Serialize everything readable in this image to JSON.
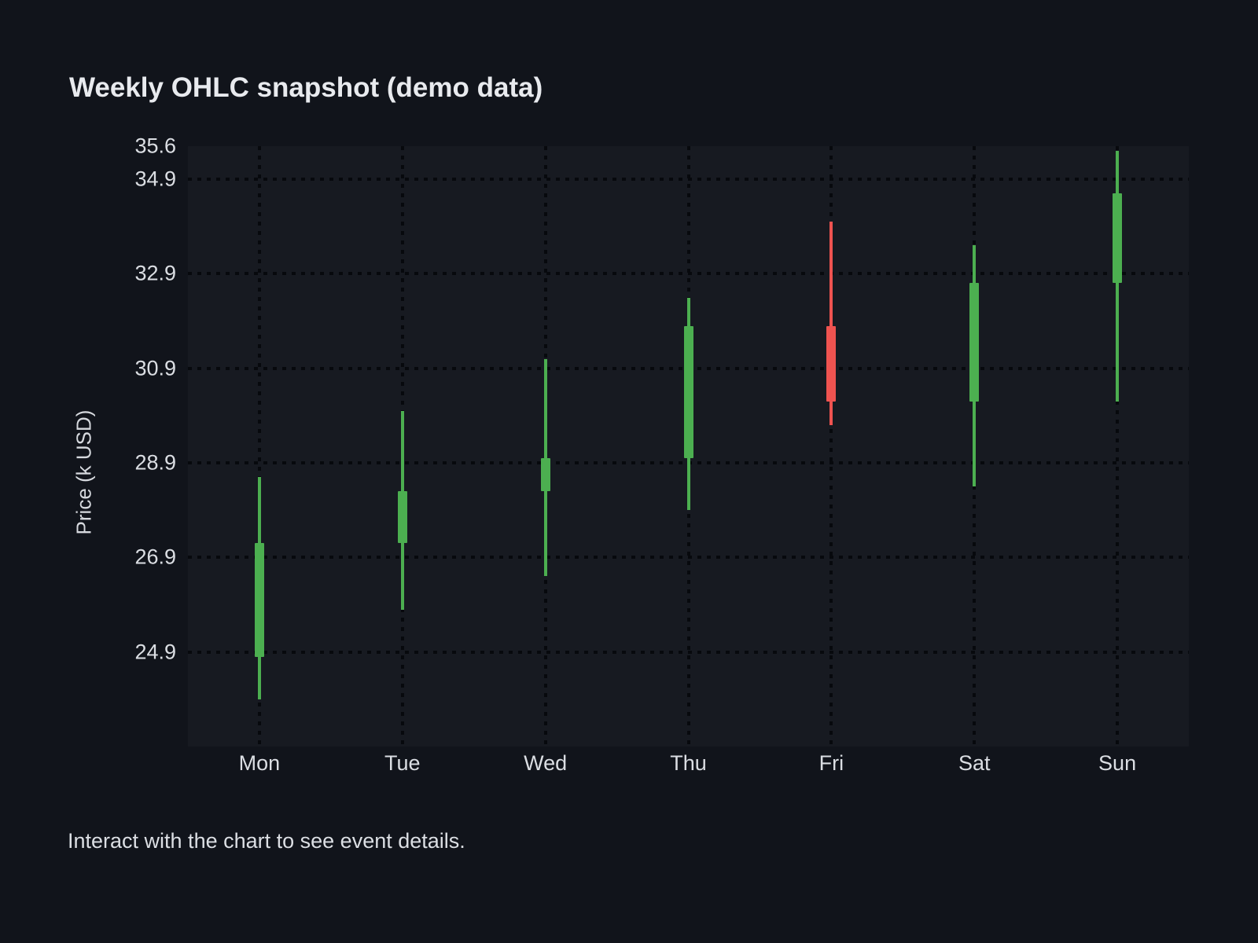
{
  "page": {
    "title": "Weekly OHLC snapshot (demo data)",
    "footer": "Interact with the chart to see event details."
  },
  "chart_data": {
    "type": "candlestick",
    "title": "Weekly OHLC snapshot (demo data)",
    "ylabel": "Price (k USD)",
    "xlabel": "",
    "categories": [
      "Mon",
      "Tue",
      "Wed",
      "Thu",
      "Fri",
      "Sat",
      "Sun"
    ],
    "ohlc": [
      {
        "day": "Mon",
        "open": 24.8,
        "high": 28.6,
        "low": 23.9,
        "close": 27.2,
        "direction": "up"
      },
      {
        "day": "Tue",
        "open": 27.2,
        "high": 30.0,
        "low": 25.8,
        "close": 28.3,
        "direction": "up"
      },
      {
        "day": "Wed",
        "open": 28.3,
        "high": 31.1,
        "low": 26.5,
        "close": 29.0,
        "direction": "up"
      },
      {
        "day": "Thu",
        "open": 29.0,
        "high": 32.4,
        "low": 27.9,
        "close": 31.8,
        "direction": "up"
      },
      {
        "day": "Fri",
        "open": 31.8,
        "high": 34.0,
        "low": 29.7,
        "close": 30.2,
        "direction": "down"
      },
      {
        "day": "Sat",
        "open": 30.2,
        "high": 33.5,
        "low": 28.4,
        "close": 32.7,
        "direction": "up"
      },
      {
        "day": "Sun",
        "open": 32.7,
        "high": 35.5,
        "low": 30.2,
        "close": 34.6,
        "direction": "up"
      }
    ],
    "y_axis": {
      "min": 22.9,
      "max": 35.6,
      "ticks": [
        {
          "label": "35.6",
          "value": 35.6,
          "grid": false
        },
        {
          "label": "34.9",
          "value": 34.9,
          "grid": true
        },
        {
          "label": "32.9",
          "value": 32.9,
          "grid": true
        },
        {
          "label": "30.9",
          "value": 30.9,
          "grid": true
        },
        {
          "label": "28.9",
          "value": 28.9,
          "grid": true
        },
        {
          "label": "26.9",
          "value": 26.9,
          "grid": true
        },
        {
          "label": "24.9",
          "value": 24.9,
          "grid": true
        }
      ]
    },
    "grid": {
      "style": "dotted",
      "horizontal": true,
      "vertical_at_categories": true
    },
    "legend": {
      "visible": false
    },
    "colors": {
      "up": "#4caf50",
      "down": "#ef5350",
      "gridline": "#07090d",
      "plot_bg": "#171a21",
      "page_bg": "#11141b",
      "text": "#dbdee3"
    }
  }
}
